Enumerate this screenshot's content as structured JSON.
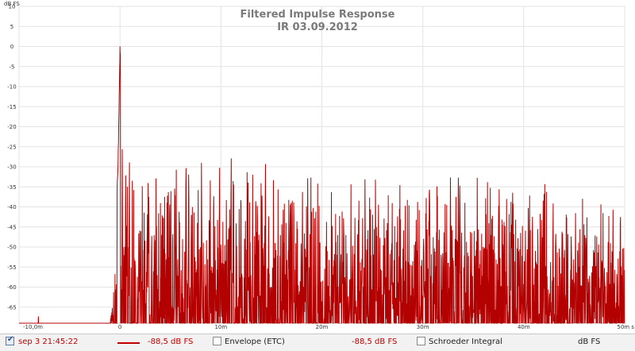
{
  "chart_data": {
    "type": "line",
    "title": "Filtered Impulse Response",
    "subtitle": "IR 03.09.2012",
    "ylabel": "dB FS",
    "xlabel": "",
    "xlim": [
      -0.01,
      0.05
    ],
    "ylim": [
      -69,
      10
    ],
    "x_ticks": [
      {
        "value": -0.01,
        "label": "-10,0m"
      },
      {
        "value": 0.0,
        "label": "0"
      },
      {
        "value": 0.01,
        "label": "10m"
      },
      {
        "value": 0.02,
        "label": "20m"
      },
      {
        "value": 0.03,
        "label": "30m"
      },
      {
        "value": 0.04,
        "label": "40m"
      },
      {
        "value": 0.05,
        "label": "50m s"
      }
    ],
    "y_ticks": [
      10,
      5,
      0,
      -5,
      -10,
      -15,
      -20,
      -25,
      -30,
      -35,
      -40,
      -45,
      -50,
      -55,
      -60,
      -65
    ],
    "grid": true,
    "line_color": "#b30000",
    "series": [
      {
        "name": "sep 3 21:45:22",
        "peak_db": 0,
        "envelope": [
          [
            -0.01,
            -69
          ],
          [
            -0.0082,
            -69
          ],
          [
            -0.0081,
            -61.5
          ],
          [
            -0.008,
            -69
          ],
          [
            -0.001,
            -69
          ],
          [
            -0.0008,
            -60
          ],
          [
            -0.0006,
            -52
          ],
          [
            -0.0004,
            -40
          ],
          [
            -0.0002,
            -30
          ],
          [
            0.0,
            0
          ],
          [
            0.0002,
            -8
          ],
          [
            0.0004,
            -12
          ],
          [
            0.0008,
            -17
          ],
          [
            0.0012,
            -20
          ],
          [
            0.002,
            -24
          ],
          [
            0.004,
            -25
          ],
          [
            0.006,
            -25
          ],
          [
            0.008,
            -25
          ],
          [
            0.01,
            -26
          ],
          [
            0.012,
            -26
          ],
          [
            0.014,
            -26
          ],
          [
            0.016,
            -27
          ],
          [
            0.018,
            -28
          ],
          [
            0.02,
            -29
          ],
          [
            0.022,
            -29
          ],
          [
            0.024,
            -30
          ],
          [
            0.026,
            -30
          ],
          [
            0.028,
            -30
          ],
          [
            0.03,
            -30
          ],
          [
            0.032,
            -30
          ],
          [
            0.034,
            -30
          ],
          [
            0.036,
            -30
          ],
          [
            0.038,
            -30
          ],
          [
            0.04,
            -30
          ],
          [
            0.042,
            -31
          ],
          [
            0.044,
            -33
          ],
          [
            0.046,
            -34
          ],
          [
            0.048,
            -35
          ],
          [
            0.05,
            -36
          ]
        ]
      }
    ]
  },
  "legend": {
    "trace_label": "sep 3 21:45:22",
    "trace_value": "-88,5 dB FS",
    "envelope_label": "Envelope (ETC)",
    "envelope_value": "-88,5 dB FS",
    "schroeder_label": "Schroeder Integral",
    "schroeder_value": "dB FS",
    "trace_checked": true,
    "envelope_checked": false,
    "schroeder_checked": false
  }
}
